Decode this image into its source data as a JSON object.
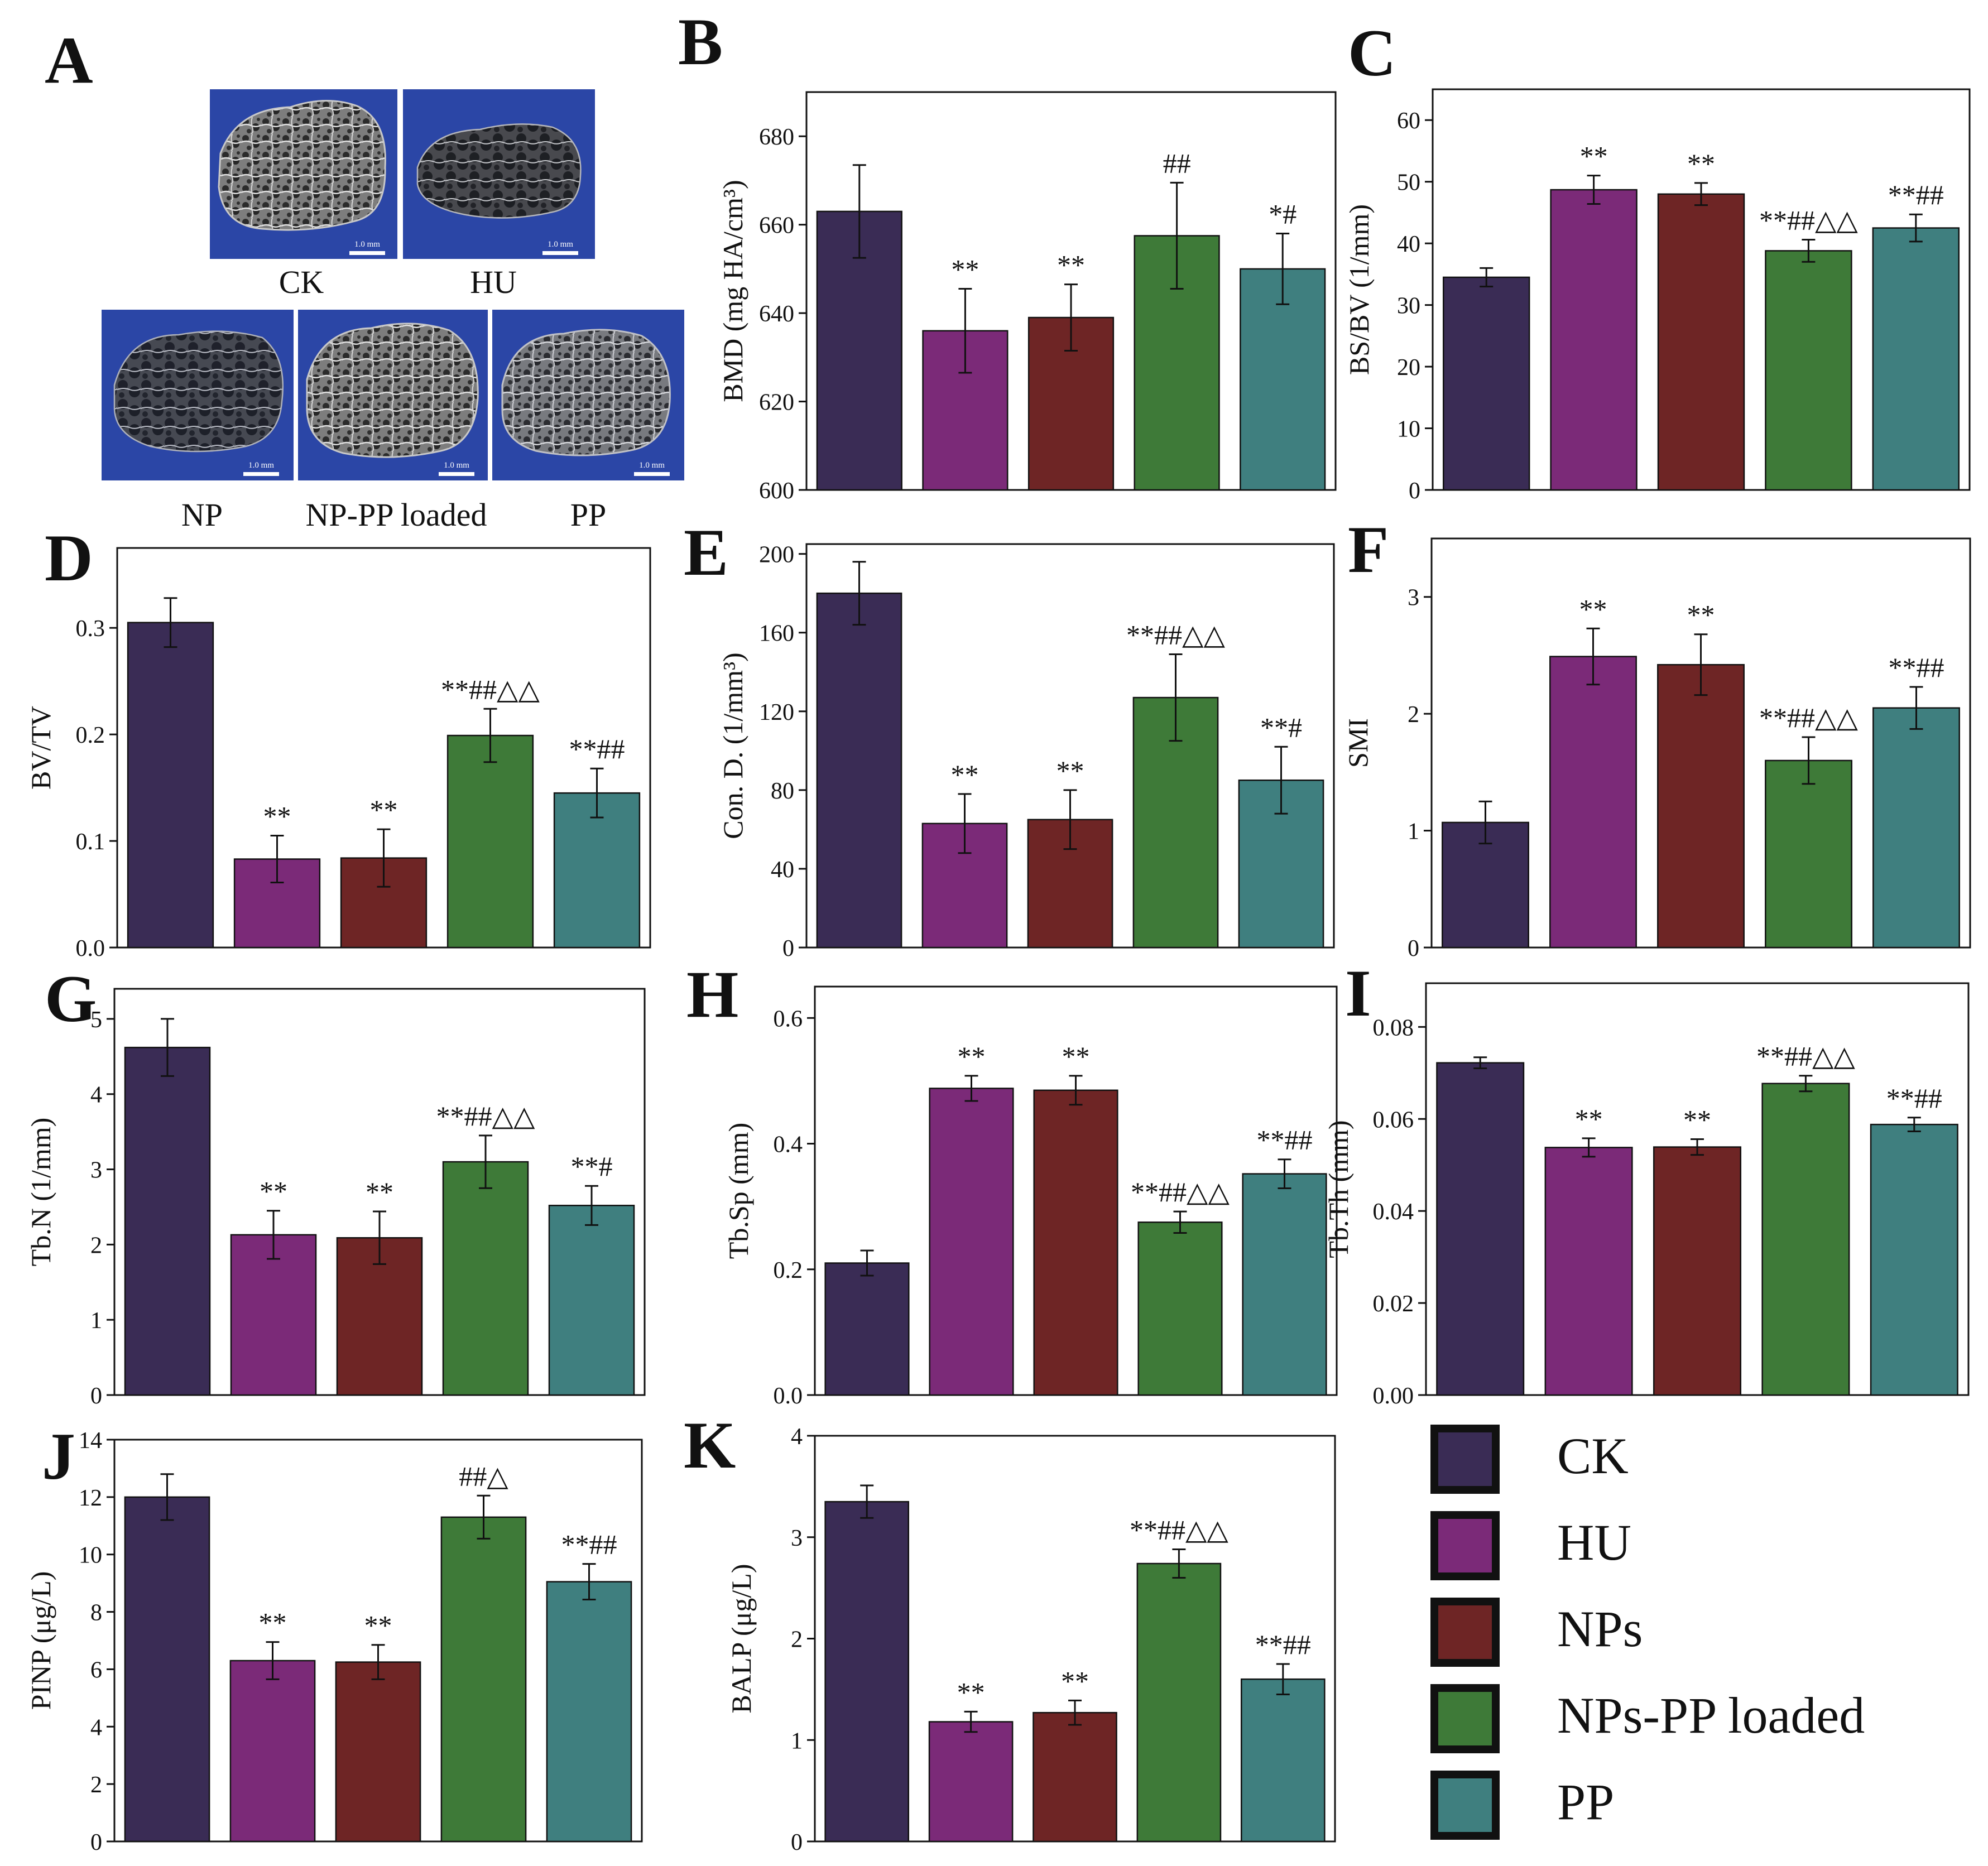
{
  "colors": {
    "CK": "#3a2c55",
    "HU": "#7b2a78",
    "NPs": "#6e2525",
    "NPs-PP loaded": "#3e7a38",
    "PP": "#3f7f7f",
    "scan_background": "#2b46a6",
    "axis": "#111111"
  },
  "panel_a": {
    "letter": "A",
    "images": [
      {
        "label": "CK",
        "scale_bar": "1.0 mm"
      },
      {
        "label": "HU",
        "scale_bar": "1.0 mm"
      },
      {
        "label": "NP",
        "scale_bar": "1.0 mm"
      },
      {
        "label": "NP-PP loaded",
        "scale_bar": "1.0 mm"
      },
      {
        "label": "PP",
        "scale_bar": "1.0 mm"
      }
    ]
  },
  "legend": {
    "entries": [
      "CK",
      "HU",
      "NPs",
      "NPs-PP loaded",
      "PP"
    ],
    "placement": "bottom-right"
  },
  "chart_data": [
    {
      "letter": "B",
      "type": "bar",
      "ylabel": "BMD (mg HA/cm³)",
      "ylim": [
        600,
        690
      ],
      "ticks": [
        600,
        620,
        640,
        660,
        680
      ],
      "decimals": 0,
      "categories": [
        "CK",
        "HU",
        "NPs",
        "NPs-PP loaded",
        "PP"
      ],
      "values": [
        663,
        636,
        639,
        657.5,
        650
      ],
      "errors": [
        10.5,
        9.5,
        7.5,
        12,
        8
      ],
      "annotations": [
        "",
        "**",
        "**",
        "##",
        "*#"
      ]
    },
    {
      "letter": "C",
      "type": "bar",
      "ylabel": "BS/BV (1/mm)",
      "ylim": [
        0,
        65
      ],
      "ticks": [
        0,
        10,
        20,
        30,
        40,
        50,
        60
      ],
      "decimals": 0,
      "categories": [
        "CK",
        "HU",
        "NPs",
        "NPs-PP loaded",
        "PP"
      ],
      "values": [
        34.5,
        48.7,
        48,
        38.8,
        42.5
      ],
      "errors": [
        1.5,
        2.3,
        1.8,
        1.8,
        2.2
      ],
      "annotations": [
        "",
        "**",
        "**",
        "**##△△",
        "**##"
      ]
    },
    {
      "letter": "D",
      "type": "bar",
      "ylabel": "BV/TV",
      "ylim": [
        0,
        0.375
      ],
      "ticks": [
        0.0,
        0.1,
        0.2,
        0.3
      ],
      "decimals": 1,
      "categories": [
        "CK",
        "HU",
        "NPs",
        "NPs-PP loaded",
        "PP"
      ],
      "values": [
        0.305,
        0.083,
        0.084,
        0.199,
        0.145
      ],
      "errors": [
        0.023,
        0.022,
        0.027,
        0.025,
        0.023
      ],
      "annotations": [
        "",
        "**",
        "**",
        "**##△△",
        "**##"
      ]
    },
    {
      "letter": "E",
      "type": "bar",
      "ylabel": "Con. D. (1/mm³)",
      "ylim": [
        0,
        205
      ],
      "ticks": [
        0,
        40,
        80,
        120,
        160,
        200
      ],
      "decimals": 0,
      "categories": [
        "CK",
        "HU",
        "NPs",
        "NPs-PP loaded",
        "PP"
      ],
      "values": [
        180,
        63,
        65,
        127,
        85
      ],
      "errors": [
        16,
        15,
        15,
        22,
        17
      ],
      "annotations": [
        "",
        "**",
        "**",
        "**##△△",
        "**#"
      ]
    },
    {
      "letter": "F",
      "type": "bar",
      "ylabel": "SMI",
      "ylim": [
        0,
        3.5
      ],
      "ticks": [
        0,
        1,
        2,
        3
      ],
      "decimals": 0,
      "categories": [
        "CK",
        "HU",
        "NPs",
        "NPs-PP loaded",
        "PP"
      ],
      "values": [
        1.07,
        2.49,
        2.42,
        1.6,
        2.05
      ],
      "errors": [
        0.18,
        0.24,
        0.26,
        0.2,
        0.18
      ],
      "annotations": [
        "",
        "**",
        "**",
        "**##△△",
        "**##"
      ]
    },
    {
      "letter": "G",
      "type": "bar",
      "ylabel": "Tb.N (1/mm)",
      "ylim": [
        0,
        5.4
      ],
      "ticks": [
        0,
        1,
        2,
        3,
        4,
        5
      ],
      "decimals": 0,
      "categories": [
        "CK",
        "HU",
        "NPs",
        "NPs-PP loaded",
        "PP"
      ],
      "values": [
        4.62,
        2.13,
        2.09,
        3.1,
        2.52
      ],
      "errors": [
        0.38,
        0.32,
        0.35,
        0.35,
        0.26
      ],
      "annotations": [
        "",
        "**",
        "**",
        "**##△△",
        "**#"
      ]
    },
    {
      "letter": "H",
      "type": "bar",
      "ylabel": "Tb.Sp (mm)",
      "ylim": [
        0,
        0.65
      ],
      "ticks": [
        0.0,
        0.2,
        0.4,
        0.6
      ],
      "decimals": 1,
      "categories": [
        "CK",
        "HU",
        "NPs",
        "NPs-PP loaded",
        "PP"
      ],
      "values": [
        0.21,
        0.488,
        0.485,
        0.275,
        0.352
      ],
      "errors": [
        0.02,
        0.02,
        0.023,
        0.017,
        0.023
      ],
      "annotations": [
        "",
        "**",
        "**",
        "**##△△",
        "**##"
      ]
    },
    {
      "letter": "I",
      "type": "bar",
      "ylabel": "Tb.Th (mm)",
      "ylim": [
        0,
        0.0895
      ],
      "ticks": [
        0.0,
        0.02,
        0.04,
        0.06,
        0.08
      ],
      "decimals": 2,
      "categories": [
        "CK",
        "HU",
        "NPs",
        "NPs-PP loaded",
        "PP"
      ],
      "values": [
        0.0722,
        0.0538,
        0.0539,
        0.0677,
        0.0588
      ],
      "errors": [
        0.0012,
        0.002,
        0.0017,
        0.0017,
        0.0015
      ],
      "annotations": [
        "",
        "**",
        "**",
        "**##△△",
        "**##"
      ]
    },
    {
      "letter": "J",
      "type": "bar",
      "ylabel": "PINP (μg/L)",
      "ylim": [
        0,
        14
      ],
      "ticks": [
        0,
        2,
        4,
        6,
        8,
        10,
        12,
        14
      ],
      "decimals": 0,
      "categories": [
        "CK",
        "HU",
        "NPs",
        "NPs-PP loaded",
        "PP"
      ],
      "values": [
        12,
        6.3,
        6.25,
        11.3,
        9.05
      ],
      "errors": [
        0.8,
        0.65,
        0.6,
        0.75,
        0.62
      ],
      "annotations": [
        "",
        "**",
        "**",
        "##△",
        "**##"
      ]
    },
    {
      "letter": "K",
      "type": "bar",
      "ylabel": "BALP (μg/L)",
      "ylim": [
        0,
        4
      ],
      "ticks": [
        0,
        1,
        2,
        3,
        4
      ],
      "decimals": 0,
      "categories": [
        "CK",
        "HU",
        "NPs",
        "NPs-PP loaded",
        "PP"
      ],
      "values": [
        3.35,
        1.18,
        1.27,
        2.74,
        1.6
      ],
      "errors": [
        0.16,
        0.1,
        0.12,
        0.14,
        0.15
      ],
      "annotations": [
        "",
        "**",
        "**",
        "**##△△",
        "**##"
      ]
    }
  ]
}
